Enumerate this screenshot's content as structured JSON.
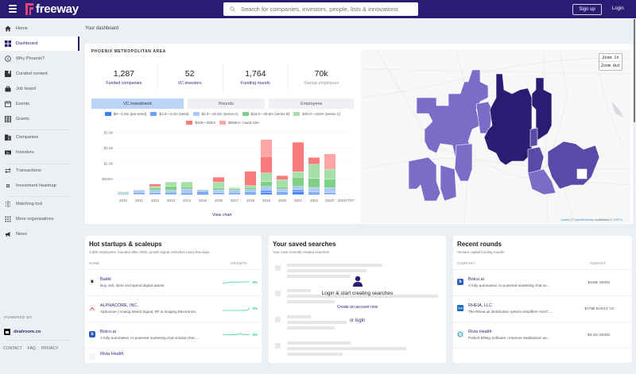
{
  "header": {
    "brand": "freeway",
    "search_placeholder": "Search for companies, investors, people, lists & innovations",
    "signup_label": "Sign up",
    "login_label": "Login",
    "brand_color": "#291d73",
    "logo_color": "#e0457b"
  },
  "sidebar": {
    "items": [
      {
        "label": "Home",
        "icon": "home-icon"
      },
      {
        "label": "Dashboard",
        "icon": "dashboard-icon",
        "active": true
      },
      {
        "label": "Why Phoenix?",
        "icon": "info-icon"
      },
      {
        "label": "Curated content",
        "icon": "bookmark-icon"
      },
      {
        "label": "Job board",
        "icon": "briefcase-icon"
      },
      {
        "label": "Events",
        "icon": "calendar-icon"
      },
      {
        "label": "Grants",
        "icon": "grid-icon"
      },
      {
        "label": "Companies",
        "icon": "building-icon"
      },
      {
        "label": "Investors",
        "icon": "money-icon"
      },
      {
        "label": "Transactions",
        "icon": "arrows-icon"
      },
      {
        "label": "Investment heatmap",
        "icon": "heatmap-icon"
      },
      {
        "label": "Matching tool",
        "icon": "matching-icon"
      },
      {
        "label": "More organizations",
        "icon": "dots-grid-icon"
      },
      {
        "label": "News",
        "icon": "megaphone-icon"
      }
    ],
    "powered_by": "POWERED BY",
    "dealroom": "dealroom.co",
    "footer": [
      "CONTACT",
      "FAQ",
      "PRIVACY"
    ]
  },
  "breadcrumb": "Your dashboard",
  "overview": {
    "area_title": "PHOENIX METROPOLITAN AREA",
    "stats": [
      {
        "value": "1,287",
        "label": "Funded companies"
      },
      {
        "value": "52",
        "label": "VC investors"
      },
      {
        "value": "1,764",
        "label": "Funding rounds"
      },
      {
        "value": "70k",
        "label": "Startup employees"
      }
    ],
    "tabs": [
      {
        "label": "VC investment",
        "active": true
      },
      {
        "label": "Rounds"
      },
      {
        "label": "Employees"
      }
    ],
    "view_chart": "View chart"
  },
  "chart_data": {
    "type": "bar",
    "stacked": true,
    "title": "",
    "xlabel": "",
    "ylabel": "",
    "ylim": [
      0,
      2000
    ],
    "y_ticks": [
      "$2.0b",
      "$1.5b",
      "$1.0b",
      "$500m",
      ""
    ],
    "y_tick_values": [
      2000,
      1500,
      1000,
      500,
      0
    ],
    "categories": [
      "2010",
      "2011",
      "2012",
      "2013",
      "2014",
      "2015",
      "2016",
      "2017",
      "2018",
      "2019",
      "2020",
      "2021",
      "2022",
      "2023*",
      "2024YTD*"
    ],
    "legend_position": "top",
    "series": [
      {
        "name": "$0—1.0m (pre-seed)",
        "color": "#3b7ff0",
        "values": [
          10,
          15,
          20,
          25,
          30,
          40,
          20,
          25,
          30,
          60,
          40,
          80,
          30,
          20,
          0
        ]
      },
      {
        "name": "$1.0—4.0m (seed)",
        "color": "#6ba0f5",
        "values": [
          20,
          40,
          40,
          50,
          40,
          60,
          40,
          40,
          60,
          90,
          50,
          80,
          50,
          40,
          5
        ]
      },
      {
        "name": "$4.0—15.0m (series A)",
        "color": "#adc9fa",
        "values": [
          30,
          90,
          80,
          60,
          110,
          40,
          90,
          80,
          70,
          110,
          90,
          100,
          150,
          160,
          5
        ]
      },
      {
        "name": "$15.0—40.0m (series B)",
        "color": "#7fcf86",
        "values": [
          20,
          0,
          70,
          130,
          70,
          20,
          60,
          40,
          70,
          160,
          70,
          300,
          290,
          270,
          0
        ]
      },
      {
        "name": "$40.0—100m (series C)",
        "color": "#a6dfa8",
        "values": [
          20,
          0,
          50,
          140,
          160,
          0,
          190,
          40,
          60,
          280,
          230,
          180,
          460,
          330,
          0
        ]
      },
      {
        "name": "$100—250m",
        "color": "#f97b7b",
        "values": [
          0,
          0,
          80,
          0,
          0,
          0,
          160,
          0,
          460,
          530,
          130,
          950,
          220,
          0,
          0
        ]
      },
      {
        "name": "$250m+ round size",
        "color": "#fca5a5",
        "values": [
          0,
          0,
          0,
          0,
          0,
          0,
          0,
          0,
          0,
          550,
          0,
          0,
          0,
          490,
          0
        ]
      }
    ]
  },
  "map": {
    "zoom_in": "Zoom In",
    "zoom_out": "Zoom Out",
    "attribution_leaflet": "Leaflet",
    "attribution_mid": " | © ",
    "attribution_osm": "OpenStreetMap",
    "attribution_tail": " contributors © ",
    "attribution_carto": "CARTO",
    "colors": {
      "dark": "#291d73",
      "medium": "#5a4aa8",
      "light": "#7c6cc7"
    }
  },
  "hot_startups": {
    "title": "Hot startups & scaleups",
    "subtitle": "1-500 employees, founded after 2000, growth signal refreshes every few days.",
    "col_name": "NAME",
    "col_growth": "GROWTH",
    "rows": [
      {
        "name": "Bakkt",
        "desc": "Buy, sell, store and spend digital assets",
        "growth": "6%",
        "logo": "bakkt-logo"
      },
      {
        "name": "ALPHACORE, INC.",
        "desc": "Alphacore | Analog Mixed Signal, RF & Imaging Electronics",
        "growth": "9%",
        "logo": "alphacore-logo"
      },
      {
        "name": "Botco.ai",
        "desc": "A fully-automated, AI-powered marketing chat solution that ....",
        "growth": "0%",
        "logo": "botco-logo"
      },
      {
        "name": "Rivia Health",
        "desc": "",
        "growth": "",
        "logo": "rivia-logo"
      }
    ]
  },
  "saved_searches": {
    "title": "Your saved searches",
    "subtitle": "Your most recently created searches",
    "overlay_title": "Login & start creating searches",
    "create_account": "Create an account now",
    "or_text": "or ",
    "login_link": "login"
  },
  "recent_rounds": {
    "title": "Recent rounds",
    "subtitle": "Venture capital funding rounds",
    "col_company": "COMPANY",
    "col_amount": "AMOUNT",
    "rows": [
      {
        "name": "Botco.ai",
        "desc": "A fully-automated, AI-powered marketing chat so...",
        "amount": "$100k SEED"
      },
      {
        "name": "RHEIA, LLC",
        "desc": "The Rheia air distribution system simplifies HVAC ...",
        "amount": "$779k EARLY VC"
      },
      {
        "name": "Rivia Health",
        "desc": "Patient Billing Software | Improve Satisfaction an...",
        "amount": "$3.3m SEED"
      }
    ]
  }
}
